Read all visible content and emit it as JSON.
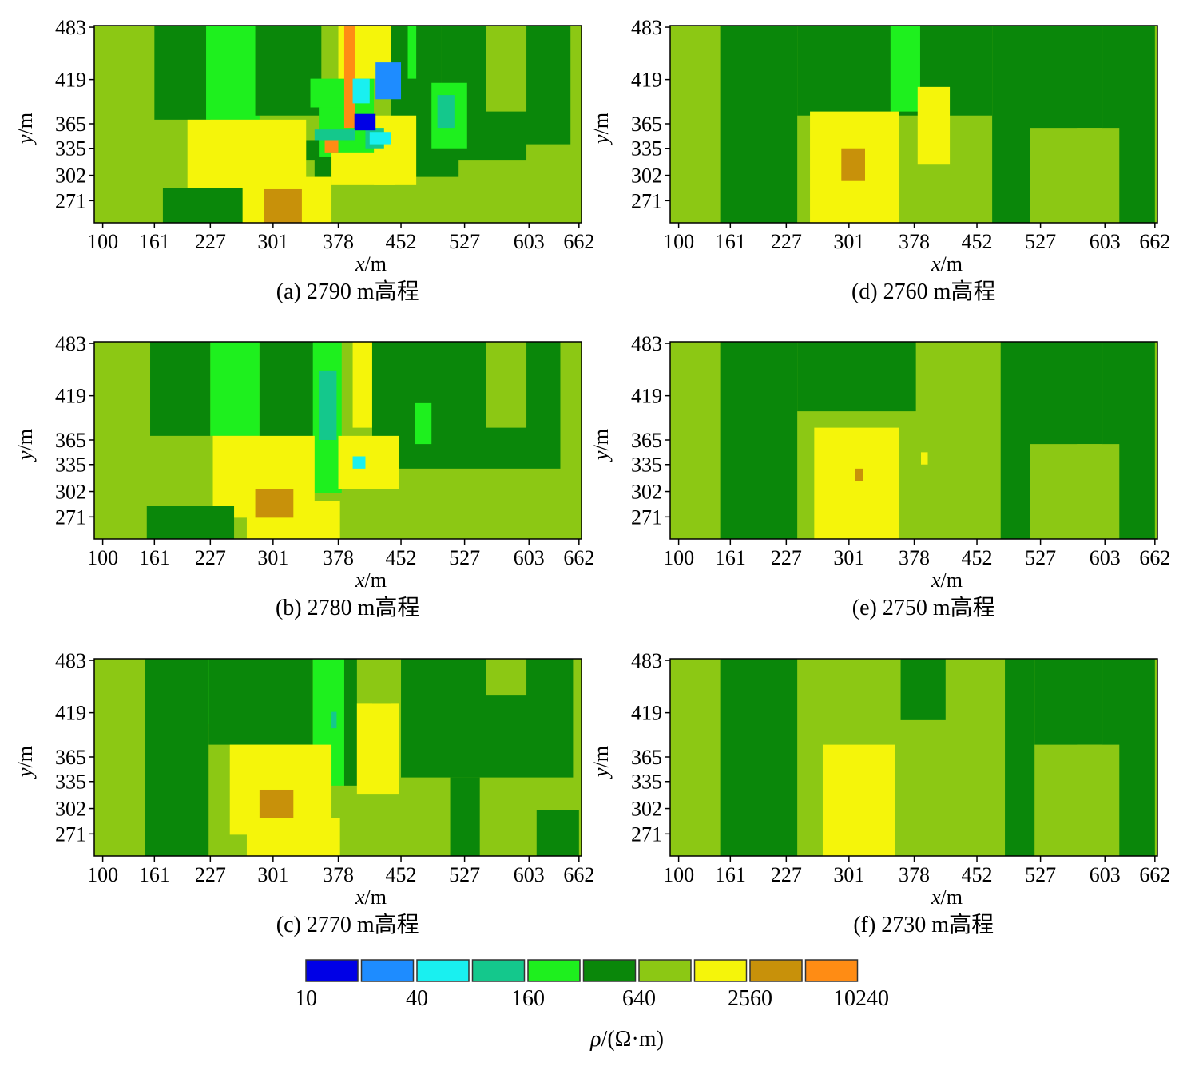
{
  "colors": {
    "c0": "#0000e6",
    "c1": "#1e8cff",
    "c2": "#19f0f0",
    "c3": "#14c88c",
    "c4": "#1ef01e",
    "c5": "#0a870a",
    "c6": "#8cc814",
    "c7": "#f5f50a",
    "c8": "#c8910a",
    "c9": "#ff8c14"
  },
  "chart_data": {
    "type": "heatmap",
    "x_label": "x",
    "x_unit": "/m",
    "y_label": "y",
    "y_unit": "/m",
    "x_ticks": [
      "100",
      "161",
      "227",
      "301",
      "378",
      "452",
      "527",
      "603",
      "662"
    ],
    "y_ticks": [
      "483",
      "419",
      "365",
      "335",
      "302",
      "271"
    ],
    "x_tick_values": [
      100,
      161,
      227,
      301,
      378,
      452,
      527,
      603,
      662
    ],
    "y_tick_values": [
      483,
      419,
      365,
      335,
      302,
      271
    ],
    "xlim": [
      90,
      665
    ],
    "ylim": [
      244,
      485
    ],
    "colorbar": {
      "title_symbol": "ρ",
      "title_unit": "/(Ω·m)",
      "labels": [
        "10",
        "40",
        "160",
        "640",
        "2560",
        "10240"
      ],
      "bins": [
        "c0",
        "c1",
        "c2",
        "c3",
        "c4",
        "c5",
        "c6",
        "c7",
        "c8",
        "c9"
      ]
    },
    "panels": [
      {
        "id": "a",
        "caption": "(a) 2790 m高程",
        "background": "c6",
        "regions": [
          {
            "c": "c5",
            "x": [
              161,
              227
            ],
            "y": [
              370,
              485
            ]
          },
          {
            "c": "c4",
            "x": [
              222,
              285
            ],
            "y": [
              370,
              485
            ]
          },
          {
            "c": "c5",
            "x": [
              280,
              358
            ],
            "y": [
              375,
              485
            ]
          },
          {
            "c": "c5",
            "x": [
              440,
              500
            ],
            "y": [
              340,
              485
            ]
          },
          {
            "c": "c4",
            "x": [
              460,
              470
            ],
            "y": [
              420,
              485
            ]
          },
          {
            "c": "c5",
            "x": [
              500,
              652
            ],
            "y": [
              340,
              485
            ]
          },
          {
            "c": "c6",
            "x": [
              552,
              600
            ],
            "y": [
              380,
              485
            ]
          },
          {
            "c": "c5",
            "x": [
              340,
              600
            ],
            "y": [
              320,
              345
            ]
          },
          {
            "c": "c5",
            "x": [
              425,
              520
            ],
            "y": [
              300,
              330
            ]
          },
          {
            "c": "c4",
            "x": [
              488,
              530
            ],
            "y": [
              335,
              415
            ]
          },
          {
            "c": "c3",
            "x": [
              495,
              515
            ],
            "y": [
              360,
              400
            ]
          },
          {
            "c": "c4",
            "x": [
              345,
              420
            ],
            "y": [
              385,
              420
            ]
          },
          {
            "c": "c4",
            "x": [
              355,
              420
            ],
            "y": [
              325,
              385
            ]
          },
          {
            "c": "c5",
            "x": [
              350,
              415
            ],
            "y": [
              300,
              325
            ]
          },
          {
            "c": "c7",
            "x": [
              378,
              440
            ],
            "y": [
              420,
              485
            ]
          },
          {
            "c": "c9",
            "x": [
              385,
              398
            ],
            "y": [
              360,
              485
            ]
          },
          {
            "c": "c7",
            "x": [
              420,
              470
            ],
            "y": [
              290,
              375
            ]
          },
          {
            "c": "c7",
            "x": [
              370,
              445
            ],
            "y": [
              290,
              330
            ]
          },
          {
            "c": "c3",
            "x": [
              410,
              432
            ],
            "y": [
              335,
              360
            ]
          },
          {
            "c": "c1",
            "x": [
              422,
              452
            ],
            "y": [
              395,
              440
            ]
          },
          {
            "c": "c2",
            "x": [
              395,
              415
            ],
            "y": [
              390,
              420
            ]
          },
          {
            "c": "c0",
            "x": [
              397,
              422
            ],
            "y": [
              357,
              377
            ]
          },
          {
            "c": "c2",
            "x": [
              415,
              440
            ],
            "y": [
              340,
              355
            ]
          },
          {
            "c": "c3",
            "x": [
              350,
              398
            ],
            "y": [
              345,
              358
            ]
          },
          {
            "c": "c9",
            "x": [
              362,
              378
            ],
            "y": [
              330,
              345
            ]
          },
          {
            "c": "c7",
            "x": [
              200,
              340
            ],
            "y": [
              285,
              370
            ]
          },
          {
            "c": "c7",
            "x": [
              250,
              370
            ],
            "y": [
              244,
              300
            ]
          },
          {
            "c": "c8",
            "x": [
              290,
              335
            ],
            "y": [
              244,
              285
            ]
          },
          {
            "c": "c5",
            "x": [
              171,
              265
            ],
            "y": [
              244,
              286
            ]
          }
        ]
      },
      {
        "id": "b",
        "caption": "(b) 2780 m高程",
        "background": "c6",
        "regions": [
          {
            "c": "c5",
            "x": [
              156,
              227
            ],
            "y": [
              370,
              485
            ]
          },
          {
            "c": "c4",
            "x": [
              227,
              285
            ],
            "y": [
              370,
              485
            ]
          },
          {
            "c": "c5",
            "x": [
              285,
              350
            ],
            "y": [
              365,
              485
            ]
          },
          {
            "c": "c5",
            "x": [
              350,
              378
            ],
            "y": [
              300,
              485
            ]
          },
          {
            "c": "c4",
            "x": [
              348,
              382
            ],
            "y": [
              300,
              485
            ]
          },
          {
            "c": "c3",
            "x": [
              355,
              376
            ],
            "y": [
              365,
              450
            ]
          },
          {
            "c": "c7",
            "x": [
              395,
              418
            ],
            "y": [
              380,
              485
            ]
          },
          {
            "c": "c5",
            "x": [
              418,
              440
            ],
            "y": [
              360,
              485
            ]
          },
          {
            "c": "c5",
            "x": [
              440,
              640
            ],
            "y": [
              330,
              485
            ]
          },
          {
            "c": "c6",
            "x": [
              552,
              600
            ],
            "y": [
              380,
              485
            ]
          },
          {
            "c": "c4",
            "x": [
              468,
              488
            ],
            "y": [
              360,
              410
            ]
          },
          {
            "c": "c7",
            "x": [
              230,
              350
            ],
            "y": [
              270,
              370
            ]
          },
          {
            "c": "c7",
            "x": [
              270,
              380
            ],
            "y": [
              244,
              290
            ]
          },
          {
            "c": "c7",
            "x": [
              378,
              450
            ],
            "y": [
              305,
              370
            ]
          },
          {
            "c": "c8",
            "x": [
              280,
              325
            ],
            "y": [
              270,
              305
            ]
          },
          {
            "c": "c2",
            "x": [
              395,
              410
            ],
            "y": [
              330,
              345
            ]
          },
          {
            "c": "c5",
            "x": [
              152,
              255
            ],
            "y": [
              244,
              284
            ]
          }
        ]
      },
      {
        "id": "c",
        "caption": "(c) 2770 m高程",
        "background": "c6",
        "regions": [
          {
            "c": "c5",
            "x": [
              150,
              225
            ],
            "y": [
              244,
              485
            ]
          },
          {
            "c": "c4",
            "x": [
              225,
              280
            ],
            "y": [
              405,
              485
            ]
          },
          {
            "c": "c5",
            "x": [
              225,
              348
            ],
            "y": [
              380,
              485
            ]
          },
          {
            "c": "c4",
            "x": [
              348,
              385
            ],
            "y": [
              330,
              485
            ]
          },
          {
            "c": "c3",
            "x": [
              370,
              376
            ],
            "y": [
              400,
              420
            ]
          },
          {
            "c": "c5",
            "x": [
              385,
              400
            ],
            "y": [
              330,
              485
            ]
          },
          {
            "c": "c7",
            "x": [
              400,
              450
            ],
            "y": [
              320,
              430
            ]
          },
          {
            "c": "c6",
            "x": [
              418,
              440
            ],
            "y": [
              430,
              485
            ]
          },
          {
            "c": "c5",
            "x": [
              452,
              655
            ],
            "y": [
              340,
              485
            ]
          },
          {
            "c": "c6",
            "x": [
              552,
              600
            ],
            "y": [
              440,
              485
            ]
          },
          {
            "c": "c5",
            "x": [
              510,
              545
            ],
            "y": [
              244,
              340
            ]
          },
          {
            "c": "c5",
            "x": [
              612,
              662
            ],
            "y": [
              244,
              300
            ]
          },
          {
            "c": "c7",
            "x": [
              250,
              370
            ],
            "y": [
              270,
              380
            ]
          },
          {
            "c": "c7",
            "x": [
              270,
              380
            ],
            "y": [
              244,
              290
            ]
          },
          {
            "c": "c8",
            "x": [
              285,
              325
            ],
            "y": [
              290,
              325
            ]
          }
        ]
      },
      {
        "id": "d",
        "caption": "(d) 2760 m高程",
        "background": "c6",
        "regions": [
          {
            "c": "c5",
            "x": [
              150,
              240
            ],
            "y": [
              244,
              485
            ]
          },
          {
            "c": "c5",
            "x": [
              240,
              470
            ],
            "y": [
              375,
              485
            ]
          },
          {
            "c": "c4",
            "x": [
              350,
              385
            ],
            "y": [
              380,
              485
            ]
          },
          {
            "c": "c5",
            "x": [
              470,
              515
            ],
            "y": [
              244,
              485
            ]
          },
          {
            "c": "c5",
            "x": [
              515,
              600
            ],
            "y": [
              360,
              485
            ]
          },
          {
            "c": "c5",
            "x": [
              600,
              662
            ],
            "y": [
              244,
              485
            ]
          },
          {
            "c": "c6",
            "x": [
              570,
              620
            ],
            "y": [
              244,
              360
            ]
          },
          {
            "c": "c7",
            "x": [
              255,
              360
            ],
            "y": [
              244,
              380
            ]
          },
          {
            "c": "c7",
            "x": [
              382,
              420
            ],
            "y": [
              315,
              410
            ]
          },
          {
            "c": "c8",
            "x": [
              292,
              320
            ],
            "y": [
              295,
              335
            ]
          }
        ]
      },
      {
        "id": "e",
        "caption": "(e) 2750 m高程",
        "background": "c6",
        "regions": [
          {
            "c": "c5",
            "x": [
              150,
              240
            ],
            "y": [
              244,
              485
            ]
          },
          {
            "c": "c5",
            "x": [
              240,
              380
            ],
            "y": [
              400,
              485
            ]
          },
          {
            "c": "c5",
            "x": [
              480,
              515
            ],
            "y": [
              244,
              485
            ]
          },
          {
            "c": "c5",
            "x": [
              515,
              600
            ],
            "y": [
              360,
              485
            ]
          },
          {
            "c": "c5",
            "x": [
              600,
              662
            ],
            "y": [
              244,
              485
            ]
          },
          {
            "c": "c6",
            "x": [
              570,
              620
            ],
            "y": [
              244,
              360
            ]
          },
          {
            "c": "c7",
            "x": [
              260,
              360
            ],
            "y": [
              244,
              380
            ]
          },
          {
            "c": "c8",
            "x": [
              308,
              318
            ],
            "y": [
              315,
              330
            ]
          },
          {
            "c": "c7",
            "x": [
              386,
              394
            ],
            "y": [
              335,
              350
            ]
          }
        ]
      },
      {
        "id": "f",
        "caption": "(f) 2730 m高程",
        "background": "c6",
        "regions": [
          {
            "c": "c5",
            "x": [
              150,
              240
            ],
            "y": [
              244,
              485
            ]
          },
          {
            "c": "c5",
            "x": [
              362,
              415
            ],
            "y": [
              410,
              485
            ]
          },
          {
            "c": "c5",
            "x": [
              485,
              520
            ],
            "y": [
              244,
              485
            ]
          },
          {
            "c": "c5",
            "x": [
              520,
              600
            ],
            "y": [
              380,
              485
            ]
          },
          {
            "c": "c5",
            "x": [
              600,
              662
            ],
            "y": [
              244,
              485
            ]
          },
          {
            "c": "c6",
            "x": [
              570,
              620
            ],
            "y": [
              244,
              380
            ]
          },
          {
            "c": "c7",
            "x": [
              270,
              355
            ],
            "y": [
              244,
              380
            ]
          }
        ]
      }
    ]
  }
}
